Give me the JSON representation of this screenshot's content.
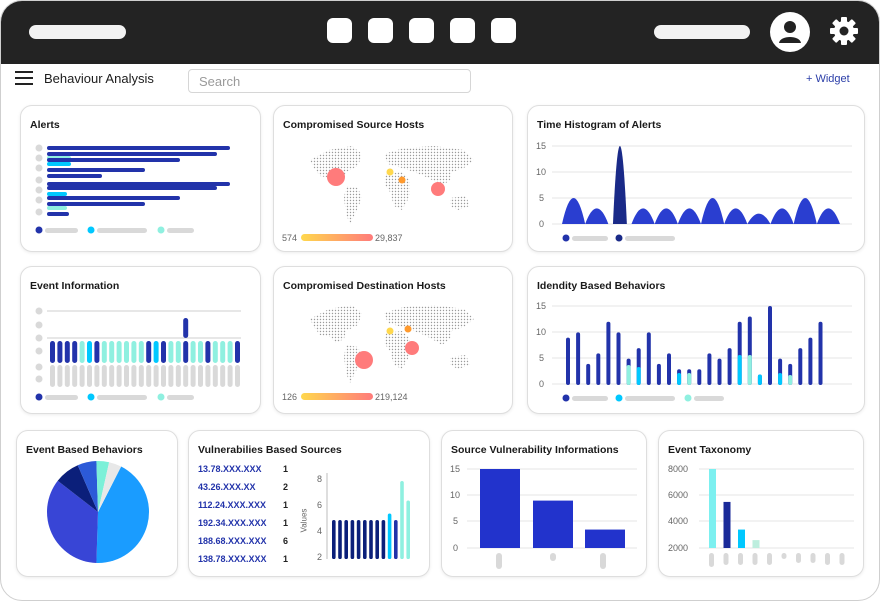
{
  "header": {
    "page_title": "Behaviour Analysis",
    "search_placeholder": "Search",
    "widget_label": "+ Widget"
  },
  "colors": {
    "topbar": "#232323",
    "primary": "#2233aa",
    "accent": "#00c8ff",
    "mint": "#7cf0d8"
  },
  "icons": [
    "menu-icon",
    "user-icon",
    "gear-icon",
    "plus-icon"
  ],
  "cards": {
    "alerts": {
      "title": "Alerts"
    },
    "compromised_source": {
      "title": "Compromised Source Hosts",
      "range_min": "574",
      "range_max": "29,837"
    },
    "time_histogram": {
      "title": "Time Histogram of Alerts",
      "y_ticks": [
        "15",
        "10",
        "5",
        "0"
      ]
    },
    "event_information": {
      "title": "Event Information"
    },
    "compromised_destination": {
      "title": "Compromised Destination Hosts",
      "range_min": "126",
      "range_max": "219,124"
    },
    "identity_behaviors": {
      "title": "Idendity Based Behaviors",
      "y_ticks": [
        "15",
        "10",
        "5",
        "0"
      ]
    },
    "event_based": {
      "title": "Event Based Behaviors"
    },
    "vulnerabilities": {
      "title": "Vulnerabilies Based Sources",
      "axis_label": "Values",
      "y_ticks": [
        "8",
        "6",
        "4",
        "2"
      ],
      "rows": [
        {
          "ip": "13.78.XXX.XXX",
          "count": "1"
        },
        {
          "ip": "43.26.XXX.XX",
          "count": "2"
        },
        {
          "ip": "112.24.XXX.XXX",
          "count": "1"
        },
        {
          "ip": "192.34.XXX.XXX",
          "count": "1"
        },
        {
          "ip": "188.68.XXX.XXX",
          "count": "6"
        },
        {
          "ip": "138.78.XXX.XXX",
          "count": "1"
        }
      ]
    },
    "source_vulnerability": {
      "title": "Source Vulnerability Informations",
      "y_ticks": [
        "15",
        "10",
        "5",
        "0"
      ]
    },
    "event_taxonomy": {
      "title": "Event Taxonomy",
      "y_ticks": [
        "8000",
        "6000",
        "4000",
        "2000"
      ]
    }
  },
  "chart_data": [
    {
      "type": "line",
      "name": "time_histogram",
      "ylim": [
        0,
        15
      ],
      "peaks": [
        5,
        3,
        15,
        3,
        3,
        3,
        5,
        3,
        2,
        3,
        5,
        3
      ]
    },
    {
      "type": "bar",
      "name": "identity_behaviors",
      "ylim": [
        0,
        15
      ],
      "values": [
        9,
        10,
        4,
        6,
        12,
        10,
        5,
        7,
        10,
        4,
        6,
        3,
        3,
        3,
        6,
        5,
        7,
        12,
        13,
        2,
        15,
        5,
        4,
        7,
        9,
        12
      ]
    },
    {
      "type": "bar",
      "name": "source_vulnerability",
      "ylim": [
        0,
        15
      ],
      "values": [
        15,
        9,
        3.5
      ]
    },
    {
      "type": "bar",
      "name": "event_taxonomy",
      "ylim": [
        0,
        8000
      ],
      "values": [
        8000,
        5500,
        3400,
        2600
      ]
    },
    {
      "type": "pie",
      "name": "event_based",
      "values": [
        43,
        35,
        8,
        6,
        4,
        4
      ]
    },
    {
      "type": "bar",
      "name": "vulnerabilities",
      "ylim": [
        2,
        8
      ],
      "values": [
        5,
        5,
        5,
        5,
        5,
        5,
        5,
        5,
        5,
        5.5,
        5,
        8,
        6.5
      ]
    }
  ]
}
